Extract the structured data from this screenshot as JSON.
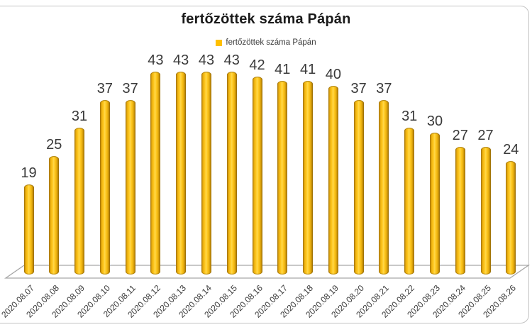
{
  "chart_data": {
    "type": "bar",
    "bar_style": "cylinder-3d",
    "title": "fertőzöttek száma Pápán",
    "legend_label": "fertőzöttek száma Pápán",
    "legend_position": "top",
    "grid": false,
    "xlabel": "",
    "ylabel": "",
    "categories": [
      "2020.08.07",
      "2020.08.08",
      "2020.08.09",
      "2020.08.10",
      "2020.08.11",
      "2020.08.12",
      "2020.08.13",
      "2020.08.14",
      "2020.08.15",
      "2020.08.16",
      "2020.08.17",
      "2020.08.18",
      "2020.08.19",
      "2020.08.20",
      "2020.08.21",
      "2020.08.22",
      "2020.08.23",
      "2020.08.24",
      "2020.08.25",
      "2020.08.26"
    ],
    "values": [
      19,
      25,
      31,
      37,
      37,
      43,
      43,
      43,
      43,
      42,
      41,
      41,
      40,
      37,
      37,
      31,
      30,
      27,
      27,
      24
    ],
    "colors": {
      "bar": "#FFC000",
      "bar_highlight": "#FFD84D",
      "bar_edge": "#8F6603",
      "value_label": "#3A3A3A",
      "axis_label": "#3A3A3A",
      "title": "#1A1A1A",
      "floor_stroke": "#A6A6A6",
      "frame": "#C3C3C3"
    }
  }
}
